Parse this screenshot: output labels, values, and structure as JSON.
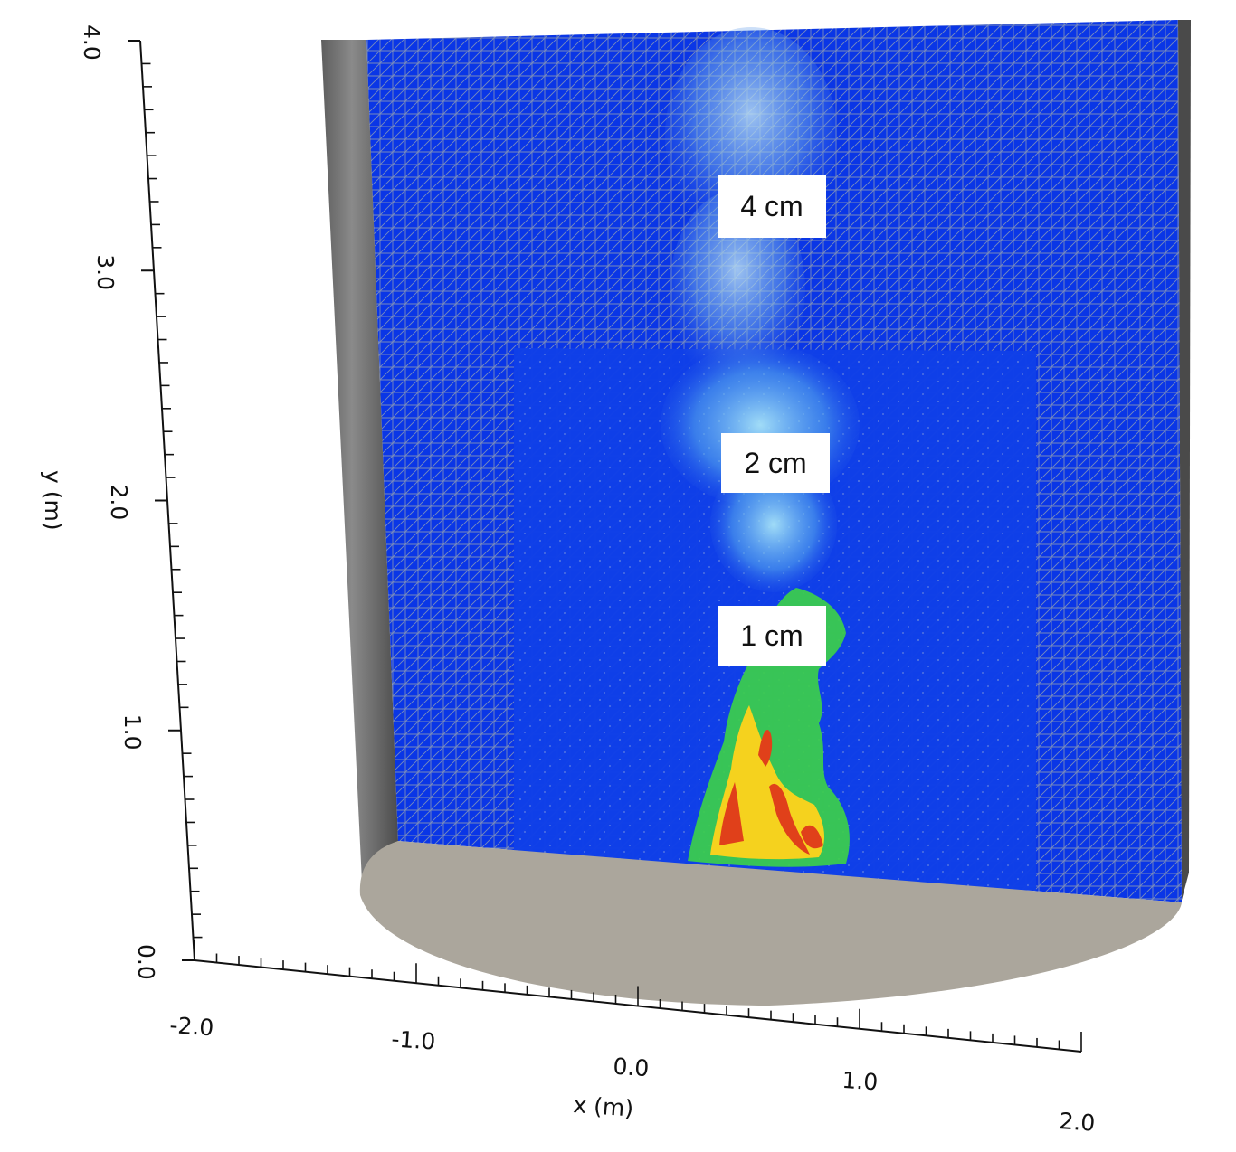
{
  "figure": {
    "y_axis": {
      "title": "y (m)",
      "ticks": [
        "0.0",
        "1.0",
        "2.0",
        "3.0",
        "4.0"
      ]
    },
    "x_axis": {
      "title": "x (m)",
      "ticks": [
        "-2.0",
        "-1.0",
        "0.0",
        "1.0",
        "2.0"
      ]
    },
    "resolution_labels": [
      "4 cm",
      "2 cm",
      "1 cm"
    ],
    "colors": {
      "mesh_blue": "#0a36e6",
      "fine_region_blue": "#0f3fe8",
      "mesh_line": "#8c9ab4",
      "floor": "#aba69c",
      "wall_gray": "#707070",
      "flame_hot": "#e0401a",
      "flame_mid": "#f5d21e",
      "flame_cool": "#3ccf4a",
      "smoke": "#9ad0f0"
    }
  }
}
